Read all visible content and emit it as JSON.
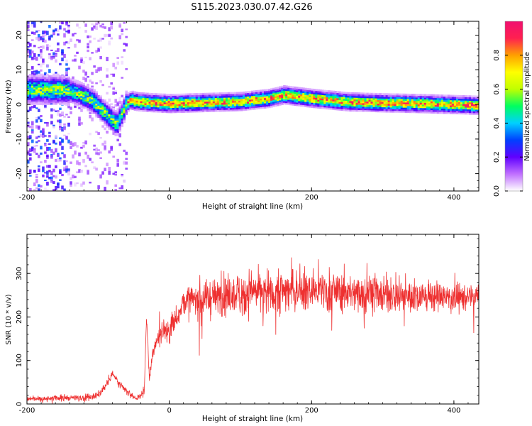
{
  "title": "S115.2023.030.07.42.G26",
  "chart_data": [
    {
      "type": "heatmap",
      "xlabel": "Height of straight line (km)",
      "ylabel": "Frequency (Hz)",
      "xlim": [
        -200,
        435
      ],
      "ylim": [
        -25,
        24
      ],
      "xticks": [
        -200,
        0,
        200,
        400
      ],
      "xtick_labels": [
        "-200",
        "0",
        "200",
        "400"
      ],
      "yticks": [
        -20,
        -10,
        0,
        10,
        20
      ],
      "ytick_labels": [
        "-20",
        "-10",
        "0",
        "10",
        "20"
      ],
      "colorbar": {
        "label": "Normalized spectral amplitude",
        "range": [
          0,
          1
        ],
        "ticks": [
          0,
          0.2,
          0.4,
          0.6,
          0.8
        ],
        "tick_labels": [
          "0.0",
          "0.2",
          "0.4",
          "0.6",
          "0.8"
        ],
        "colors": [
          "#ffffff",
          "#c070ff",
          "#6000ff",
          "#0040ff",
          "#00d0ff",
          "#00ff60",
          "#c0ff00",
          "#ffff00",
          "#ffa000",
          "#ff2050",
          "#f01070"
        ]
      },
      "ridge": {
        "x": [
          -150,
          -130,
          -110,
          -95,
          -85,
          -75,
          -68,
          -62,
          -55,
          -45,
          -30,
          0,
          50,
          100,
          140,
          160,
          200,
          250,
          300,
          350,
          400,
          435
        ],
        "y": [
          4,
          3,
          1,
          -2,
          -4,
          -6,
          -3,
          0,
          1,
          0.5,
          0.3,
          0,
          0.3,
          0.6,
          1.5,
          2.5,
          1.5,
          0.5,
          0.2,
          0,
          -0.3,
          -0.5
        ]
      },
      "grid": false,
      "legend": "none"
    },
    {
      "type": "line",
      "xlabel": "Height of straight line (km)",
      "ylabel": "SNR (10 * v/v)",
      "xlim": [
        -200,
        435
      ],
      "ylim": [
        0,
        390
      ],
      "xticks": [
        -200,
        0,
        200,
        400
      ],
      "xtick_labels": [
        "-200",
        "0",
        "200",
        "400"
      ],
      "yticks": [
        0,
        100,
        200,
        300
      ],
      "ytick_labels": [
        "0",
        "100",
        "200",
        "300"
      ],
      "color": "#ee3030",
      "envelope": {
        "x": [
          -200,
          -120,
          -100,
          -90,
          -80,
          -70,
          -55,
          -45,
          -35,
          -32,
          -28,
          -20,
          -10,
          0,
          10,
          20,
          40,
          80,
          120,
          150,
          200,
          250,
          300,
          350,
          400,
          435
        ],
        "y": [
          12,
          15,
          20,
          40,
          70,
          45,
          22,
          12,
          30,
          200,
          60,
          140,
          170,
          170,
          200,
          235,
          240,
          250,
          255,
          260,
          262,
          258,
          252,
          248,
          245,
          248
        ]
      },
      "spread": {
        "x": [
          -200,
          -100,
          -40,
          0,
          50,
          100,
          150,
          200,
          300,
          435
        ],
        "y": [
          6,
          10,
          8,
          35,
          45,
          55,
          60,
          55,
          45,
          30
        ]
      },
      "grid": false,
      "legend": "none"
    }
  ]
}
